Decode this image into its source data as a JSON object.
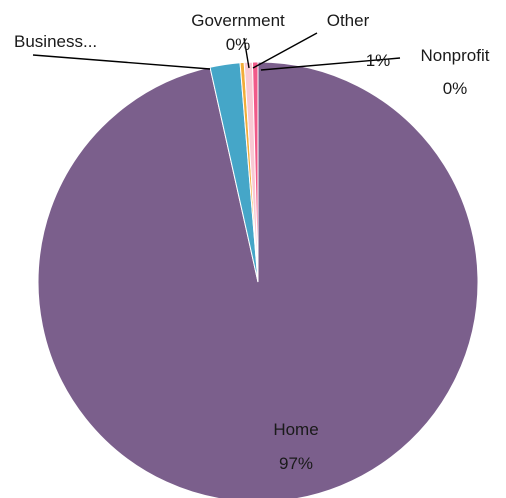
{
  "chart_data": {
    "type": "pie",
    "title": "",
    "categories": [
      "Home",
      "Business...",
      "Government",
      "Other",
      "Nonprofit"
    ],
    "values": [
      96.5,
      2.2,
      0.3,
      0.6,
      0.4
    ],
    "value_labels": [
      "97%",
      "",
      "0%",
      "1%",
      "0%"
    ],
    "colors": [
      "#7b5f8c",
      "#45a6c8",
      "#f2ad3a",
      "#f9c9d3",
      "#f15a8a"
    ],
    "legend": "none",
    "data_labels": "outside-with-leaders"
  }
}
